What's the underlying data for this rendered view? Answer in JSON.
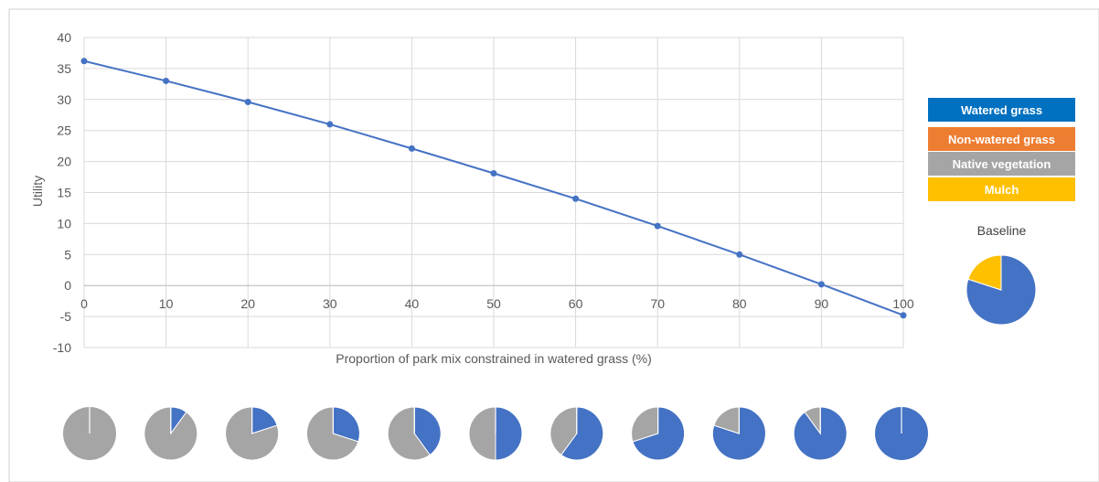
{
  "chart_data": {
    "type": "line",
    "title": "",
    "xlabel": "Proportion of park mix constrained in watered grass (%)",
    "ylabel": "Utility",
    "x": [
      0,
      10,
      20,
      30,
      40,
      50,
      60,
      70,
      80,
      90,
      100
    ],
    "series": [
      {
        "values": [
          36.2,
          33.0,
          29.6,
          26.0,
          22.1,
          18.1,
          14.0,
          9.6,
          5.0,
          0.2,
          -4.8
        ]
      }
    ],
    "xlim": [
      0,
      100
    ],
    "ylim": [
      -10,
      40
    ],
    "xticks": [
      "0",
      "10",
      "20",
      "30",
      "40",
      "50",
      "60",
      "70",
      "80",
      "90",
      "100"
    ],
    "yticks": [
      "40",
      "35",
      "30",
      "25",
      "20",
      "15",
      "10",
      "5",
      "0",
      "-5",
      "-10"
    ],
    "grid": true,
    "line_color": "#4472C4",
    "legend": {
      "placement": "right",
      "items": [
        {
          "label": "Watered grass",
          "color": "#0070C0"
        },
        {
          "label": "Non-watered grass",
          "color": "#ED7D31"
        },
        {
          "label": "Native vegetation",
          "color": "#A5A5A5"
        },
        {
          "label": "Mulch",
          "color": "#FFC000"
        }
      ]
    },
    "baseline_pie": {
      "label": "Baseline",
      "slices": [
        {
          "category": "Watered grass",
          "value": 80,
          "color": "#4472C4"
        },
        {
          "category": "Mulch",
          "value": 20,
          "color": "#FFC000"
        }
      ]
    },
    "mix_pies": [
      {
        "x": 0,
        "watered": 0,
        "native": 100
      },
      {
        "x": 10,
        "watered": 10,
        "native": 90
      },
      {
        "x": 20,
        "watered": 20,
        "native": 80
      },
      {
        "x": 30,
        "watered": 30,
        "native": 70
      },
      {
        "x": 40,
        "watered": 40,
        "native": 60
      },
      {
        "x": 50,
        "watered": 50,
        "native": 50
      },
      {
        "x": 60,
        "watered": 60,
        "native": 40
      },
      {
        "x": 70,
        "watered": 70,
        "native": 30
      },
      {
        "x": 80,
        "watered": 80,
        "native": 20
      },
      {
        "x": 90,
        "watered": 90,
        "native": 10
      },
      {
        "x": 100,
        "watered": 100,
        "native": 0
      }
    ],
    "pie_colors": {
      "watered": "#4472C4",
      "native": "#A5A5A5"
    }
  }
}
